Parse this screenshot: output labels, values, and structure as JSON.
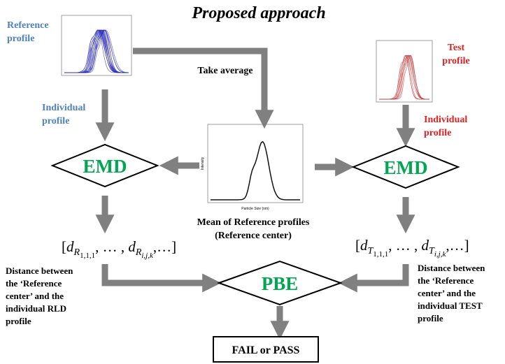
{
  "title": "Proposed approach",
  "reference_profile": {
    "label": [
      "Reference",
      "profile"
    ],
    "individual": [
      "Individual",
      "profile"
    ]
  },
  "test_profile": {
    "label": [
      "Test",
      "profile"
    ],
    "individual": [
      "Individual",
      "profile"
    ]
  },
  "take_average": "Take average",
  "mean_plot": {
    "caption": [
      "Mean of Reference profiles",
      "(Reference center)"
    ],
    "y_label": "Intensity",
    "x_label": "Particle Size (nm)"
  },
  "emd_left": "EMD",
  "emd_right": "EMD",
  "reference_distances": [
    "[",
    "d",
    "R",
    "1,1,1",
    ", … , ",
    "d",
    "R",
    "i,j,k",
    ",…]"
  ],
  "test_distances": [
    "[",
    "d",
    "T",
    "1,1,1",
    ", … , ",
    "d",
    "T",
    "i,j,k",
    ",…]"
  ],
  "reference_note": [
    "Distance between",
    "the ‘Reference",
    "center’ and the",
    "individual RLD",
    "profile"
  ],
  "test_note": [
    "Distance between",
    "the ‘Reference",
    "center’ and the",
    "individual TEST",
    "profile"
  ],
  "pbe": "PBE",
  "result": "FAIL or PASS"
}
